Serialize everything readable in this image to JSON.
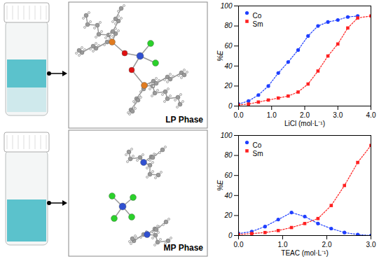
{
  "chart_data": [
    {
      "type": "line",
      "x_label": "LiCl (mol·L⁻¹)",
      "y_label": "%E",
      "xlim": [
        0,
        4
      ],
      "xticks": [
        {
          "value": 0,
          "label": "0.0"
        },
        {
          "value": 1,
          "label": "1.0"
        },
        {
          "value": 2,
          "label": "2.0"
        },
        {
          "value": 3,
          "label": "3.0"
        },
        {
          "value": 4,
          "label": "4.0"
        }
      ],
      "ylim": [
        0,
        100
      ],
      "yticks": [
        0,
        20,
        40,
        60,
        80,
        100
      ],
      "legend": "top-left",
      "x": [
        0,
        0.3,
        0.6,
        0.9,
        1.2,
        1.5,
        1.8,
        2.1,
        2.4,
        2.7,
        3.0,
        3.3,
        3.6,
        4.0
      ],
      "series": [
        {
          "name": "Co",
          "color": "#1f3fff",
          "marker": "circle",
          "line_style": "dotted",
          "values": [
            2,
            5,
            11,
            20,
            33,
            44,
            56,
            70,
            80,
            84,
            86,
            89,
            90,
            null
          ]
        },
        {
          "name": "Sm",
          "color": "#ff2020",
          "marker": "square",
          "line_style": "dotted",
          "values": [
            1,
            2,
            4,
            6,
            8,
            10,
            14,
            22,
            35,
            50,
            62,
            78,
            88,
            90
          ]
        }
      ]
    },
    {
      "type": "line",
      "x_label": "TEAC (mol·L⁻¹)",
      "y_label": "%E",
      "xlim": [
        0,
        3
      ],
      "xticks": [
        {
          "value": 0,
          "label": "0.0"
        },
        {
          "value": 1,
          "label": "1.0"
        },
        {
          "value": 2,
          "label": "2.0"
        },
        {
          "value": 3,
          "label": "3.0"
        }
      ],
      "ylim": [
        0,
        100
      ],
      "yticks": [
        0,
        20,
        40,
        60,
        80,
        100
      ],
      "legend": "top-left",
      "x": [
        0,
        0.3,
        0.6,
        0.9,
        1.2,
        1.5,
        1.8,
        2.1,
        2.4,
        2.7,
        3.0
      ],
      "series": [
        {
          "name": "Co",
          "color": "#1f3fff",
          "marker": "circle",
          "line_style": "dotted",
          "values": [
            2,
            4,
            9,
            16,
            23,
            19,
            12,
            7,
            3,
            1,
            0
          ]
        },
        {
          "name": "Sm",
          "color": "#ff2020",
          "marker": "square",
          "line_style": "dotted",
          "values": [
            1,
            2,
            3,
            5,
            8,
            12,
            17,
            30,
            50,
            73,
            90
          ]
        }
      ]
    }
  ],
  "diagram": {
    "panels": [
      {
        "label": "LP Phase"
      },
      {
        "label": "MP Phase"
      }
    ]
  }
}
